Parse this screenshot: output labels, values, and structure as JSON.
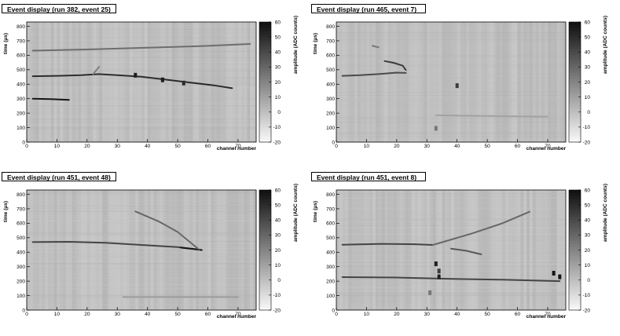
{
  "chart_data": [
    {
      "type": "heatmap",
      "title": "Event display (run 382, event 25)",
      "xlabel": "channel number",
      "ylabel": "time (μs)",
      "zlabel": "amplitude (ADC counts)",
      "xlim": [
        0,
        76
      ],
      "ylim": [
        0,
        830
      ],
      "zlim": [
        -20,
        60
      ],
      "x_ticks": [
        0,
        10,
        20,
        30,
        40,
        50,
        60,
        70
      ],
      "y_ticks": [
        0,
        100,
        200,
        300,
        400,
        500,
        600,
        700,
        800
      ],
      "z_ticks": [
        -20,
        -10,
        0,
        10,
        20,
        30,
        40,
        50,
        60
      ],
      "tracks": [
        {
          "points": [
            [
              2,
              632
            ],
            [
              20,
              640
            ],
            [
              40,
              652
            ],
            [
              60,
              665
            ],
            [
              74,
              678
            ]
          ],
          "amplitude": 28
        },
        {
          "points": [
            [
              2,
              455
            ],
            [
              10,
              458
            ],
            [
              18,
              462
            ],
            [
              24,
              470
            ],
            [
              30,
              462
            ],
            [
              38,
              452
            ],
            [
              46,
              432
            ],
            [
              54,
              412
            ],
            [
              62,
              392
            ],
            [
              68,
              372
            ]
          ],
          "amplitude": 50
        },
        {
          "points": [
            [
              2,
              300
            ],
            [
              8,
              297
            ],
            [
              14,
              292
            ]
          ],
          "amplitude": 58
        },
        {
          "points": [
            [
              22,
              470
            ],
            [
              24,
              520
            ]
          ],
          "amplitude": 22
        }
      ],
      "blobs": [
        {
          "x": 36,
          "y": 462,
          "amplitude": 55
        },
        {
          "x": 45,
          "y": 430,
          "amplitude": 55
        },
        {
          "x": 52,
          "y": 408,
          "amplitude": 50
        }
      ]
    },
    {
      "type": "heatmap",
      "title": "Event display (run 465, event 7)",
      "xlabel": "channel number",
      "ylabel": "time (μs)",
      "zlabel": "amplitude (ADC counts)",
      "xlim": [
        0,
        76
      ],
      "ylim": [
        0,
        830
      ],
      "zlim": [
        -20,
        60
      ],
      "x_ticks": [
        0,
        10,
        20,
        30,
        40,
        50,
        60,
        70
      ],
      "y_ticks": [
        0,
        100,
        200,
        300,
        400,
        500,
        600,
        700,
        800
      ],
      "z_ticks": [
        -20,
        -10,
        0,
        10,
        20,
        30,
        40,
        50,
        60
      ],
      "tracks": [
        {
          "points": [
            [
              2,
              458
            ],
            [
              8,
              462
            ],
            [
              14,
              470
            ],
            [
              20,
              480
            ],
            [
              23,
              478
            ]
          ],
          "amplitude": 40
        },
        {
          "points": [
            [
              16,
              560
            ],
            [
              19,
              548
            ],
            [
              22,
              528
            ],
            [
              23,
              498
            ]
          ],
          "amplitude": 45
        },
        {
          "points": [
            [
              12,
              665
            ],
            [
              14,
              655
            ]
          ],
          "amplitude": 25
        },
        {
          "points": [
            [
              33,
              185
            ],
            [
              50,
              180
            ],
            [
              60,
              178
            ],
            [
              70,
              176
            ]
          ],
          "amplitude": 10
        }
      ],
      "blobs": [
        {
          "x": 40,
          "y": 390,
          "amplitude": 45
        },
        {
          "x": 33,
          "y": 95,
          "amplitude": 25
        }
      ]
    },
    {
      "type": "heatmap",
      "title": "Event display (run 451, event 48)",
      "xlabel": "channel number",
      "ylabel": "time (μs)",
      "zlabel": "amplitude (ADC counts)",
      "xlim": [
        0,
        76
      ],
      "ylim": [
        0,
        830
      ],
      "zlim": [
        -20,
        60
      ],
      "x_ticks": [
        0,
        10,
        20,
        30,
        40,
        50,
        60,
        70
      ],
      "y_ticks": [
        0,
        100,
        200,
        300,
        400,
        500,
        600,
        700,
        800
      ],
      "z_ticks": [
        -20,
        -10,
        0,
        10,
        20,
        30,
        40,
        50,
        60
      ],
      "tracks": [
        {
          "points": [
            [
              2,
              470
            ],
            [
              14,
              472
            ],
            [
              26,
              465
            ],
            [
              38,
              450
            ],
            [
              50,
              435
            ],
            [
              57,
              418
            ]
          ],
          "amplitude": 42
        },
        {
          "points": [
            [
              51,
              432
            ],
            [
              58,
              415
            ]
          ],
          "amplitude": 58
        },
        {
          "points": [
            [
              36,
              682
            ],
            [
              44,
              610
            ],
            [
              50,
              540
            ],
            [
              57,
              420
            ]
          ],
          "amplitude": 30
        },
        {
          "points": [
            [
              32,
              90
            ],
            [
              45,
              90
            ],
            [
              60,
              90
            ],
            [
              70,
              90
            ]
          ],
          "amplitude": 12
        }
      ],
      "blobs": []
    },
    {
      "type": "heatmap",
      "title": "Event display (run 451, event 8)",
      "xlabel": "channel number",
      "ylabel": "time (μs)",
      "zlabel": "amplitude (ADC counts)",
      "xlim": [
        0,
        76
      ],
      "ylim": [
        0,
        830
      ],
      "zlim": [
        -20,
        60
      ],
      "x_ticks": [
        0,
        10,
        20,
        30,
        40,
        50,
        60,
        70
      ],
      "y_ticks": [
        0,
        100,
        200,
        300,
        400,
        500,
        600,
        700,
        800
      ],
      "z_ticks": [
        -20,
        -10,
        0,
        10,
        20,
        30,
        40,
        50,
        60
      ],
      "tracks": [
        {
          "points": [
            [
              2,
              452
            ],
            [
              15,
              458
            ],
            [
              26,
              455
            ],
            [
              32,
              450
            ]
          ],
          "amplitude": 42
        },
        {
          "points": [
            [
              32,
              450
            ],
            [
              45,
              530
            ],
            [
              55,
              600
            ],
            [
              64,
              680
            ]
          ],
          "amplitude": 30
        },
        {
          "points": [
            [
              38,
              425
            ],
            [
              43,
              410
            ],
            [
              48,
              385
            ]
          ],
          "amplitude": 35
        },
        {
          "points": [
            [
              2,
              228
            ],
            [
              20,
              225
            ],
            [
              40,
              215
            ],
            [
              55,
              210
            ],
            [
              65,
              205
            ],
            [
              74,
              200
            ]
          ],
          "amplitude": 42
        }
      ],
      "blobs": [
        {
          "x": 33,
          "y": 320,
          "amplitude": 55
        },
        {
          "x": 34,
          "y": 270,
          "amplitude": 45
        },
        {
          "x": 34,
          "y": 230,
          "amplitude": 55
        },
        {
          "x": 72,
          "y": 255,
          "amplitude": 58
        },
        {
          "x": 74,
          "y": 230,
          "amplitude": 58
        },
        {
          "x": 31,
          "y": 120,
          "amplitude": 25
        }
      ]
    }
  ]
}
